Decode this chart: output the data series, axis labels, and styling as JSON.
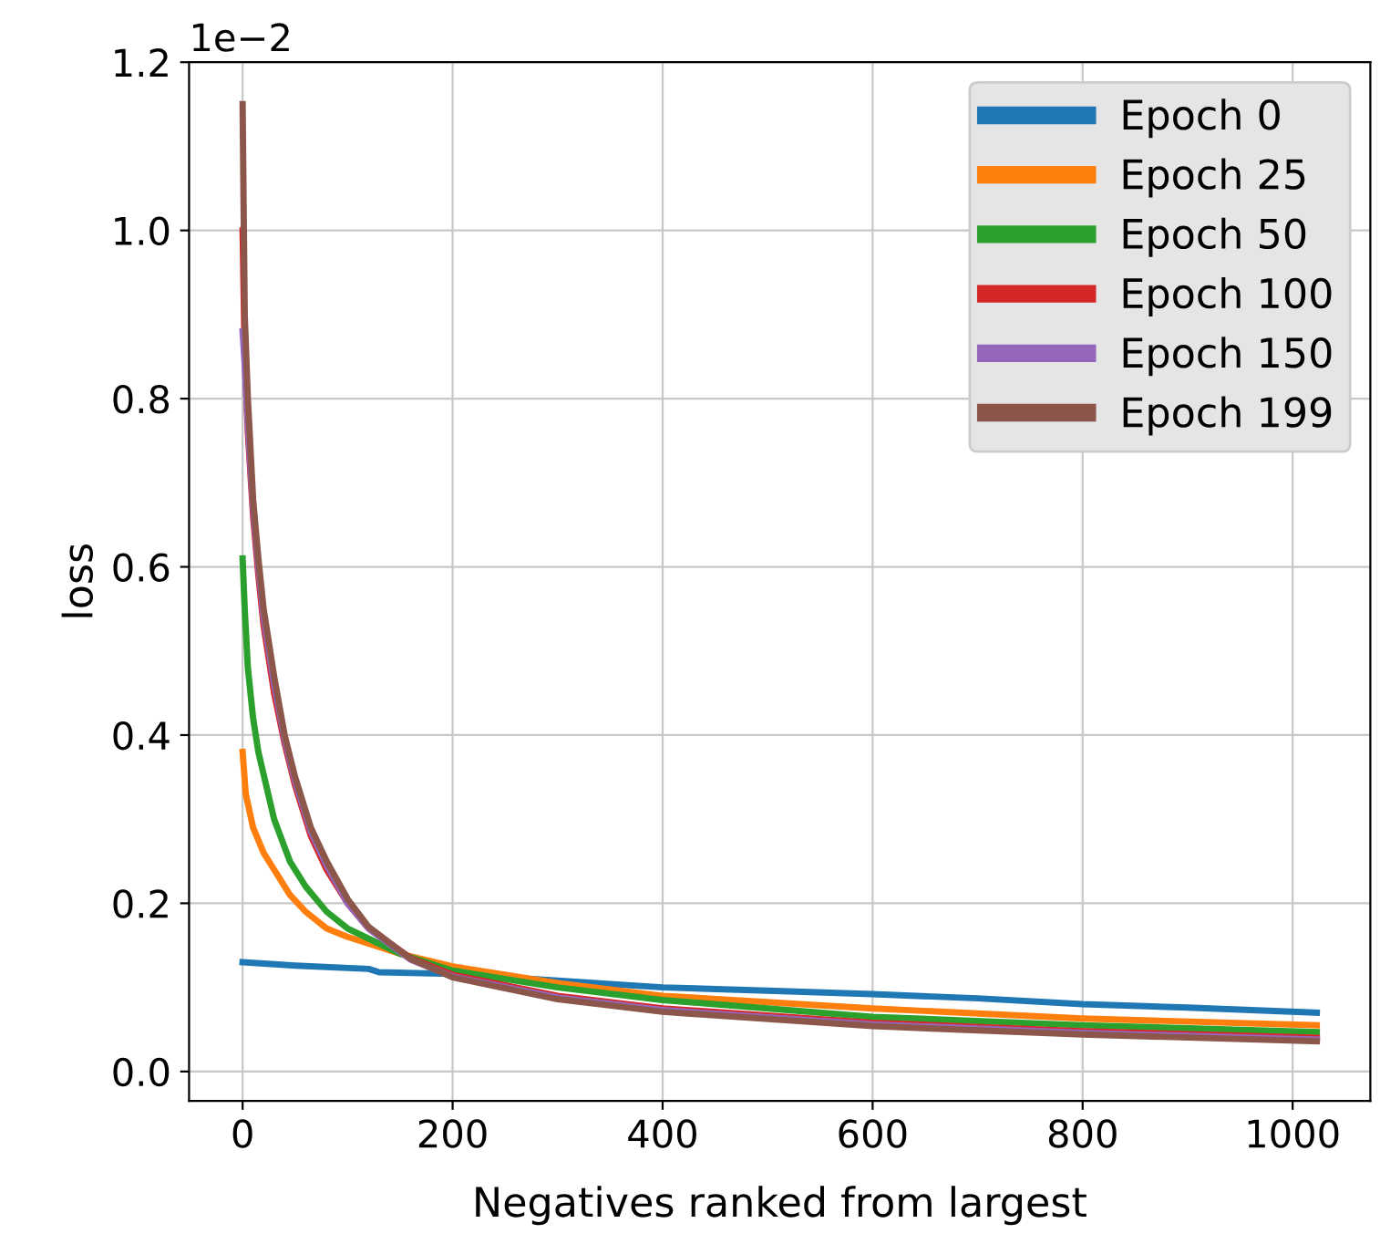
{
  "chart_data": {
    "type": "line",
    "xlabel": "Negatives ranked from largest",
    "ylabel": "loss",
    "annotations": [
      "1e−2"
    ],
    "xlim": [
      -51,
      1074
    ],
    "ylim": [
      -0.035,
      1.2
    ],
    "xticks": [
      0,
      200,
      400,
      600,
      800,
      1000
    ],
    "yticks": [
      {
        "value": 0,
        "label": "0.0"
      },
      {
        "value": 0.2,
        "label": "0.2"
      },
      {
        "value": 0.4,
        "label": "0.4"
      },
      {
        "value": 0.6,
        "label": "0.6"
      },
      {
        "value": 0.8,
        "label": "0.8"
      },
      {
        "value": 1.0,
        "label": "1.0"
      },
      {
        "value": 1.2,
        "label": "1.2"
      }
    ],
    "grid": true,
    "legend": "top right",
    "marker": "none",
    "line_style": "solid",
    "series": [
      {
        "name": "Epoch 0",
        "color": "#1f77b4",
        "x": [
          0,
          50,
          120,
          130,
          200,
          300,
          400,
          500,
          600,
          700,
          800,
          900,
          1023
        ],
        "values": [
          0.13,
          0.126,
          0.122,
          0.118,
          0.116,
          0.108,
          0.1,
          0.096,
          0.092,
          0.087,
          0.08,
          0.076,
          0.07
        ]
      },
      {
        "name": "Epoch 25",
        "color": "#ff7f0e",
        "x": [
          0,
          3,
          10,
          20,
          30,
          45,
          60,
          80,
          100,
          150,
          200,
          300,
          400,
          600,
          800,
          1023
        ],
        "values": [
          0.38,
          0.33,
          0.29,
          0.26,
          0.24,
          0.21,
          0.19,
          0.17,
          0.16,
          0.14,
          0.125,
          0.105,
          0.09,
          0.075,
          0.063,
          0.055
        ]
      },
      {
        "name": "Epoch 50",
        "color": "#2ca02c",
        "x": [
          0,
          2,
          5,
          10,
          15,
          30,
          45,
          60,
          80,
          100,
          150,
          200,
          300,
          400,
          600,
          800,
          1023
        ],
        "values": [
          0.61,
          0.55,
          0.48,
          0.42,
          0.38,
          0.3,
          0.25,
          0.22,
          0.19,
          0.17,
          0.14,
          0.12,
          0.1,
          0.085,
          0.065,
          0.055,
          0.047
        ]
      },
      {
        "name": "Epoch 100",
        "color": "#d62728",
        "x": [
          0,
          2,
          5,
          10,
          15,
          20,
          30,
          40,
          50,
          65,
          80,
          100,
          120,
          160,
          200,
          300,
          400,
          600,
          800,
          1023
        ],
        "values": [
          1.0,
          0.85,
          0.76,
          0.66,
          0.59,
          0.53,
          0.45,
          0.39,
          0.34,
          0.28,
          0.24,
          0.2,
          0.17,
          0.135,
          0.115,
          0.09,
          0.075,
          0.058,
          0.048,
          0.04
        ]
      },
      {
        "name": "Epoch 150",
        "color": "#9467bd",
        "x": [
          0,
          2,
          5,
          10,
          15,
          20,
          30,
          40,
          50,
          65,
          80,
          100,
          120,
          160,
          200,
          300,
          400,
          600,
          800,
          1023
        ],
        "values": [
          0.88,
          0.84,
          0.77,
          0.67,
          0.6,
          0.54,
          0.46,
          0.395,
          0.345,
          0.285,
          0.245,
          0.2,
          0.17,
          0.133,
          0.113,
          0.088,
          0.073,
          0.056,
          0.046,
          0.038
        ]
      },
      {
        "name": "Epoch 199",
        "color": "#8c564b",
        "x": [
          0,
          2,
          5,
          10,
          15,
          20,
          30,
          40,
          50,
          65,
          80,
          100,
          120,
          160,
          200,
          300,
          400,
          600,
          800,
          1023
        ],
        "values": [
          1.15,
          0.9,
          0.8,
          0.68,
          0.61,
          0.55,
          0.47,
          0.4,
          0.35,
          0.29,
          0.25,
          0.205,
          0.172,
          0.134,
          0.112,
          0.086,
          0.071,
          0.054,
          0.044,
          0.036
        ]
      }
    ]
  }
}
